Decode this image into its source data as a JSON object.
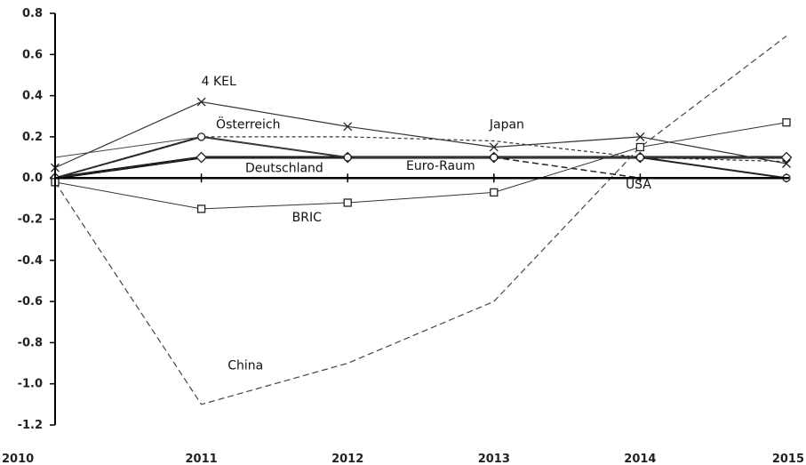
{
  "chart_data": {
    "type": "line",
    "title": "",
    "xlabel": "",
    "ylabel": "",
    "x": [
      2010,
      2011,
      2012,
      2013,
      2014,
      2015
    ],
    "ylim": [
      -1.2,
      0.8
    ],
    "yticks": [
      0.8,
      0.6,
      0.4,
      0.2,
      0.0,
      -0.2,
      -0.4,
      -0.6,
      -0.8,
      -1.0,
      -1.2
    ],
    "ytick_labels": [
      "0.8",
      "0.6",
      "0.4",
      "0.2",
      "0.0",
      "-0.2",
      "-0.4",
      "-0.6",
      "-0.8",
      "-1.0",
      "-1.2"
    ],
    "xtick_labels": [
      "2010",
      "2011",
      "2012",
      "2013",
      "2014",
      "2015"
    ],
    "grid": false,
    "legend": "none",
    "series": [
      {
        "name": "Deutschland",
        "values": [
          0.0,
          0.1,
          0.1,
          0.1,
          0.1,
          0.1
        ],
        "style": "solid",
        "width": 3,
        "marker": "none",
        "color": "#000000"
      },
      {
        "name": "Euro-Raum",
        "values": [
          0.0,
          0.1,
          0.1,
          0.1,
          0.1,
          0.1
        ],
        "style": "solid",
        "width": 1.5,
        "marker": "diamond",
        "color": "#333333"
      },
      {
        "name": "Österreich",
        "values": [
          0.0,
          0.2,
          0.1,
          0.1,
          0.1,
          0.0
        ],
        "style": "solid",
        "width": 2,
        "marker": "circle",
        "color": "#222222"
      },
      {
        "name": "4 KEL",
        "values": [
          0.05,
          0.37,
          0.25,
          0.15,
          0.2,
          0.07
        ],
        "style": "solid",
        "width": 1.2,
        "marker": "x",
        "color": "#333333"
      },
      {
        "name": "Japan",
        "values": [
          0.0,
          0.2,
          0.2,
          0.18,
          0.1,
          0.08
        ],
        "style": "dashed-fine",
        "width": 1.2,
        "marker": "none",
        "color": "#333333"
      },
      {
        "name": "USA",
        "values": [
          0.0,
          0.1,
          0.1,
          0.1,
          0.0,
          0.0
        ],
        "style": "dashed",
        "width": 1.5,
        "marker": "none",
        "color": "#222222"
      },
      {
        "name": "BRIC",
        "values": [
          -0.02,
          -0.15,
          -0.12,
          -0.07,
          0.15,
          0.27
        ],
        "style": "solid",
        "width": 1,
        "marker": "square",
        "color": "#333333"
      },
      {
        "name": "China",
        "values": [
          -0.02,
          -1.1,
          -0.9,
          -0.6,
          0.15,
          0.69
        ],
        "style": "dashed",
        "width": 1.2,
        "marker": "none",
        "color": "#444444"
      },
      {
        "name": "",
        "values": [
          0.1,
          0.2,
          0.1,
          0.1,
          0.1,
          0.1
        ],
        "style": "solid",
        "width": 1,
        "marker": "none",
        "color": "#444444"
      }
    ],
    "annotations": [
      {
        "text": "4 KEL",
        "x": 2011,
        "y": 0.45
      },
      {
        "text": "Österreich",
        "x": 2011.1,
        "y": 0.24
      },
      {
        "text": "Japan",
        "x": 2012.97,
        "y": 0.24
      },
      {
        "text": "Deutschland",
        "x": 2011.3,
        "y": 0.03
      },
      {
        "text": "Euro-Raum",
        "x": 2012.4,
        "y": 0.04
      },
      {
        "text": "USA",
        "x": 2013.9,
        "y": -0.05
      },
      {
        "text": "BRIC",
        "x": 2011.62,
        "y": -0.21
      },
      {
        "text": "China",
        "x": 2011.18,
        "y": -0.93
      }
    ]
  }
}
